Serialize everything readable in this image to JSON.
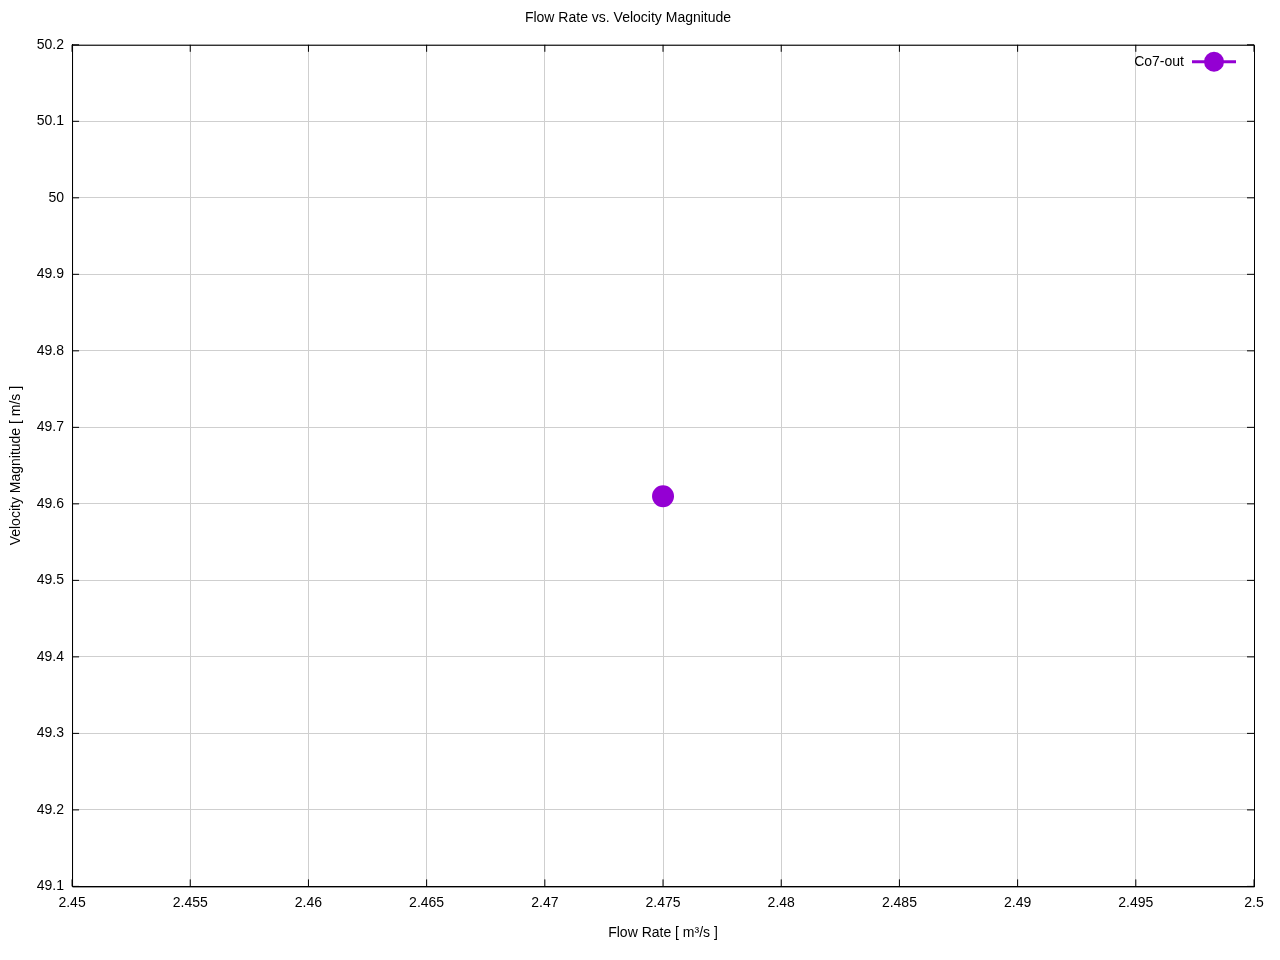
{
  "chart_data": {
    "type": "scatter",
    "title": "Flow Rate vs. Velocity Magnitude",
    "xlabel": "Flow Rate [ m³/s ]",
    "ylabel": "Velocity Magnitude [ m/s ]",
    "series": [
      {
        "name": "Co7-out",
        "color": "#9400d3",
        "x": [
          2.475
        ],
        "values": [
          49.61
        ]
      }
    ],
    "xlim": [
      2.45,
      2.5
    ],
    "xticks": [
      2.45,
      2.455,
      2.46,
      2.465,
      2.47,
      2.475,
      2.48,
      2.485,
      2.49,
      2.495,
      2.5
    ],
    "ylim": [
      49.1,
      50.2
    ],
    "yticks": [
      49.1,
      49.2,
      49.3,
      49.4,
      49.5,
      49.6,
      49.7,
      49.8,
      49.9,
      50,
      50.1,
      50.2
    ],
    "grid": true,
    "legend": "top right",
    "marker": "circle"
  }
}
